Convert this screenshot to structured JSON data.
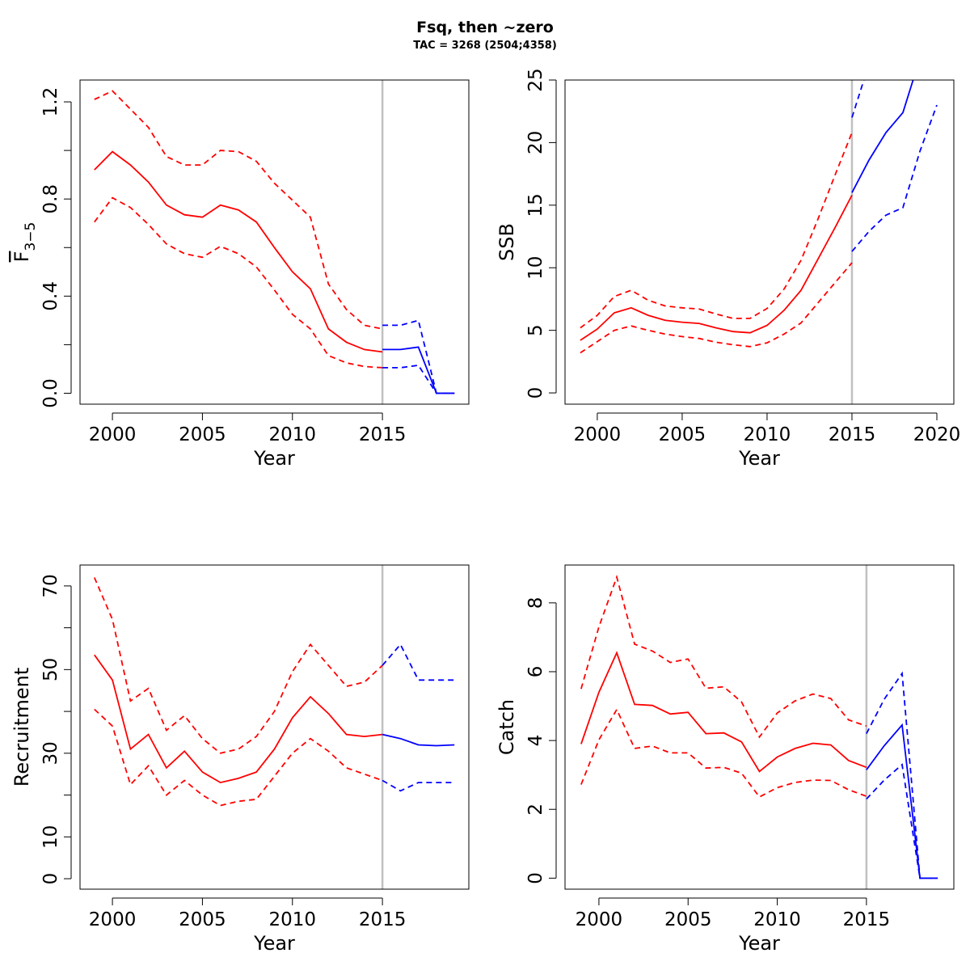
{
  "figure": {
    "title": "Fsq, then ~zero",
    "subtitle": "TAC = 3268 (2504;4358)"
  },
  "colors": {
    "historic": "#ff0000",
    "forecast": "#0000ff",
    "reference_line": "#c0c0c0",
    "frame": "#000000"
  },
  "chart_data": [
    {
      "id": "fbar",
      "type": "line",
      "xlabel": "Year",
      "ylabel_parts": {
        "main": "F",
        "sub": "3−5"
      },
      "xlim": [
        1998.2,
        2019.8
      ],
      "ylim": [
        -0.045,
        1.29
      ],
      "xticks": [
        2000,
        2005,
        2010,
        2015
      ],
      "yticks": [
        0.0,
        0.4,
        0.8,
        1.2
      ],
      "yticklabels": [
        "0.0",
        "0.4",
        "0.8",
        "1.2"
      ],
      "yminorticks": [
        0.2,
        0.6,
        1.0
      ],
      "vline_x": 2015,
      "series": [
        {
          "role": "historic",
          "style": "solid",
          "x": [
            1999,
            2000,
            2001,
            2002,
            2003,
            2004,
            2005,
            2006,
            2007,
            2008,
            2009,
            2010,
            2011,
            2012,
            2013,
            2014,
            2015
          ],
          "y": [
            0.92,
            0.995,
            0.94,
            0.87,
            0.775,
            0.735,
            0.725,
            0.775,
            0.755,
            0.705,
            0.6,
            0.5,
            0.43,
            0.265,
            0.21,
            0.18,
            0.17
          ]
        },
        {
          "role": "historic",
          "style": "dashed",
          "x": [
            1999,
            2000,
            2001,
            2002,
            2003,
            2004,
            2005,
            2006,
            2007,
            2008,
            2009,
            2010,
            2011,
            2012,
            2013,
            2014,
            2015
          ],
          "y": [
            1.21,
            1.245,
            1.17,
            1.095,
            0.975,
            0.94,
            0.94,
            1.0,
            0.995,
            0.955,
            0.865,
            0.795,
            0.725,
            0.45,
            0.345,
            0.28,
            0.265
          ]
        },
        {
          "role": "historic",
          "style": "dashed",
          "x": [
            1999,
            2000,
            2001,
            2002,
            2003,
            2004,
            2005,
            2006,
            2007,
            2008,
            2009,
            2010,
            2011,
            2012,
            2013,
            2014,
            2015
          ],
          "y": [
            0.705,
            0.805,
            0.765,
            0.695,
            0.615,
            0.575,
            0.56,
            0.605,
            0.575,
            0.52,
            0.425,
            0.325,
            0.265,
            0.155,
            0.125,
            0.11,
            0.105
          ]
        },
        {
          "role": "forecast",
          "style": "solid",
          "x": [
            2015,
            2016,
            2017,
            2018,
            2019
          ],
          "y": [
            0.18,
            0.18,
            0.19,
            0.0,
            0.0
          ]
        },
        {
          "role": "forecast",
          "style": "dashed",
          "x": [
            2015,
            2016,
            2017,
            2018,
            2019
          ],
          "y": [
            0.28,
            0.28,
            0.3,
            0.0,
            0.0
          ]
        },
        {
          "role": "forecast",
          "style": "dashed",
          "x": [
            2015,
            2016,
            2017,
            2018,
            2019
          ],
          "y": [
            0.105,
            0.105,
            0.115,
            0.0,
            0.0
          ]
        }
      ]
    },
    {
      "id": "ssb",
      "type": "line",
      "xlabel": "Year",
      "ylabel": "SSB",
      "xlim": [
        1998.1,
        2021.0
      ],
      "ylim": [
        -0.9,
        25.0
      ],
      "xticks": [
        2000,
        2005,
        2010,
        2015,
        2020
      ],
      "yticks": [
        0,
        5,
        10,
        15,
        20,
        25
      ],
      "yticklabels": [
        "0",
        "5",
        "10",
        "15",
        "20",
        "25"
      ],
      "yminorticks": [],
      "vline_x": 2015,
      "series": [
        {
          "role": "historic",
          "style": "solid",
          "x": [
            1999,
            2000,
            2001,
            2002,
            2003,
            2004,
            2005,
            2006,
            2007,
            2008,
            2009,
            2010,
            2011,
            2012,
            2013,
            2014,
            2015
          ],
          "y": [
            4.2,
            5.1,
            6.4,
            6.8,
            6.2,
            5.8,
            5.65,
            5.55,
            5.2,
            4.9,
            4.8,
            5.4,
            6.6,
            8.2,
            10.7,
            13.2,
            15.8
          ]
        },
        {
          "role": "historic",
          "style": "dashed",
          "x": [
            1999,
            2000,
            2001,
            2002,
            2003,
            2004,
            2005,
            2006,
            2007,
            2008,
            2009,
            2010,
            2011,
            2012,
            2013,
            2014,
            2015
          ],
          "y": [
            5.2,
            6.2,
            7.7,
            8.2,
            7.4,
            6.95,
            6.8,
            6.7,
            6.3,
            5.95,
            5.95,
            6.75,
            8.3,
            10.6,
            13.9,
            17.4,
            20.8
          ]
        },
        {
          "role": "historic",
          "style": "dashed",
          "x": [
            1999,
            2000,
            2001,
            2002,
            2003,
            2004,
            2005,
            2006,
            2007,
            2008,
            2009,
            2010,
            2011,
            2012,
            2013,
            2014,
            2015
          ],
          "y": [
            3.2,
            4.1,
            5.0,
            5.35,
            5.0,
            4.7,
            4.5,
            4.35,
            4.05,
            3.85,
            3.7,
            4.0,
            4.7,
            5.6,
            7.2,
            8.8,
            10.4
          ]
        },
        {
          "role": "forecast",
          "style": "solid",
          "x": [
            2015,
            2016,
            2017,
            2018,
            2018.6
          ],
          "y": [
            16.0,
            18.6,
            20.8,
            22.4,
            25.0
          ]
        },
        {
          "role": "forecast",
          "style": "dashed",
          "x": [
            2015,
            2015.7
          ],
          "y": [
            22.0,
            25.0
          ]
        },
        {
          "role": "forecast",
          "style": "dashed",
          "x": [
            2015,
            2016,
            2017,
            2018,
            2019,
            2020
          ],
          "y": [
            11.3,
            12.9,
            14.2,
            14.8,
            19.3,
            23.0
          ]
        }
      ]
    },
    {
      "id": "recruitment",
      "type": "line",
      "xlabel": "Year",
      "ylabel": "Recruitment",
      "xlim": [
        1998.2,
        2019.8
      ],
      "ylim": [
        -2.5,
        75.0
      ],
      "xticks": [
        2000,
        2005,
        2010,
        2015
      ],
      "yticks": [
        0,
        10,
        30,
        50,
        70
      ],
      "yticklabels": [
        "0",
        "10",
        "30",
        "50",
        "70"
      ],
      "yminorticks": [
        20,
        40,
        60
      ],
      "vline_x": 2015,
      "series": [
        {
          "role": "historic",
          "style": "solid",
          "x": [
            1999,
            2000,
            2001,
            2002,
            2003,
            2004,
            2005,
            2006,
            2007,
            2008,
            2009,
            2010,
            2011,
            2012,
            2013,
            2014,
            2015
          ],
          "y": [
            53.5,
            47.5,
            31.0,
            34.5,
            26.5,
            30.5,
            25.5,
            23.0,
            24.0,
            25.5,
            31.0,
            38.5,
            43.5,
            39.5,
            34.5,
            34.0,
            34.5
          ]
        },
        {
          "role": "historic",
          "style": "dashed",
          "x": [
            1999,
            2000,
            2001,
            2002,
            2003,
            2004,
            2005,
            2006,
            2007,
            2008,
            2009,
            2010,
            2011,
            2012,
            2013,
            2014,
            2015
          ],
          "y": [
            72.0,
            62.0,
            42.5,
            45.5,
            35.5,
            39.0,
            33.5,
            30.0,
            31.0,
            34.0,
            40.0,
            49.5,
            56.0,
            51.0,
            46.0,
            47.0,
            51.0
          ]
        },
        {
          "role": "historic",
          "style": "dashed",
          "x": [
            1999,
            2000,
            2001,
            2002,
            2003,
            2004,
            2005,
            2006,
            2007,
            2008,
            2009,
            2010,
            2011,
            2012,
            2013,
            2014,
            2015
          ],
          "y": [
            40.5,
            36.5,
            22.5,
            27.0,
            20.0,
            23.5,
            20.0,
            17.5,
            18.5,
            19.0,
            24.5,
            30.0,
            33.5,
            30.5,
            26.5,
            25.0,
            23.5
          ]
        },
        {
          "role": "forecast",
          "style": "solid",
          "x": [
            2015,
            2016,
            2017,
            2018,
            2019
          ],
          "y": [
            34.5,
            33.5,
            32.0,
            31.8,
            32.0
          ]
        },
        {
          "role": "forecast",
          "style": "dashed",
          "x": [
            2015,
            2016,
            2017,
            2018,
            2019
          ],
          "y": [
            51.0,
            56.0,
            47.5,
            47.5,
            47.5
          ]
        },
        {
          "role": "forecast",
          "style": "dashed",
          "x": [
            2015,
            2016,
            2017,
            2018,
            2019
          ],
          "y": [
            23.5,
            21.0,
            23.0,
            23.0,
            23.0
          ]
        }
      ]
    },
    {
      "id": "catch",
      "type": "line",
      "xlabel": "Year",
      "ylabel": "Catch",
      "xlim": [
        1998.1,
        2019.9
      ],
      "ylim": [
        -0.32,
        9.1
      ],
      "xticks": [
        2000,
        2005,
        2010,
        2015
      ],
      "yticks": [
        0,
        2,
        4,
        6,
        8
      ],
      "yticklabels": [
        "0",
        "2",
        "4",
        "6",
        "8"
      ],
      "yminorticks": [],
      "vline_x": 2015,
      "series": [
        {
          "role": "historic",
          "style": "solid",
          "x": [
            1999,
            2000,
            2001,
            2002,
            2003,
            2004,
            2005,
            2006,
            2007,
            2008,
            2009,
            2010,
            2011,
            2012,
            2013,
            2014,
            2015
          ],
          "y": [
            3.9,
            5.4,
            6.55,
            5.05,
            5.02,
            4.77,
            4.82,
            4.2,
            4.22,
            3.96,
            3.1,
            3.52,
            3.77,
            3.92,
            3.87,
            3.42,
            3.22
          ]
        },
        {
          "role": "historic",
          "style": "dashed",
          "x": [
            1999,
            2000,
            2001,
            2002,
            2003,
            2004,
            2005,
            2006,
            2007,
            2008,
            2009,
            2010,
            2011,
            2012,
            2013,
            2014,
            2015
          ],
          "y": [
            5.5,
            7.3,
            8.75,
            6.8,
            6.6,
            6.27,
            6.37,
            5.52,
            5.56,
            5.12,
            4.1,
            4.8,
            5.15,
            5.35,
            5.22,
            4.6,
            4.42
          ]
        },
        {
          "role": "historic",
          "style": "dashed",
          "x": [
            1999,
            2000,
            2001,
            2002,
            2003,
            2004,
            2005,
            2006,
            2007,
            2008,
            2009,
            2010,
            2011,
            2012,
            2013,
            2014,
            2015
          ],
          "y": [
            2.72,
            4.02,
            4.9,
            3.77,
            3.84,
            3.64,
            3.64,
            3.2,
            3.22,
            3.05,
            2.36,
            2.63,
            2.78,
            2.85,
            2.84,
            2.57,
            2.38
          ]
        },
        {
          "role": "forecast",
          "style": "solid",
          "x": [
            2015,
            2016,
            2017,
            2018,
            2019
          ],
          "y": [
            3.15,
            3.85,
            4.45,
            0.0,
            0.0
          ]
        },
        {
          "role": "forecast",
          "style": "dashed",
          "x": [
            2015,
            2016,
            2017,
            2018,
            2019
          ],
          "y": [
            4.2,
            5.2,
            5.95,
            0.0,
            0.0
          ]
        },
        {
          "role": "forecast",
          "style": "dashed",
          "x": [
            2015,
            2016,
            2017,
            2018,
            2019
          ],
          "y": [
            2.3,
            2.85,
            3.3,
            0.0,
            0.0
          ]
        }
      ]
    }
  ]
}
